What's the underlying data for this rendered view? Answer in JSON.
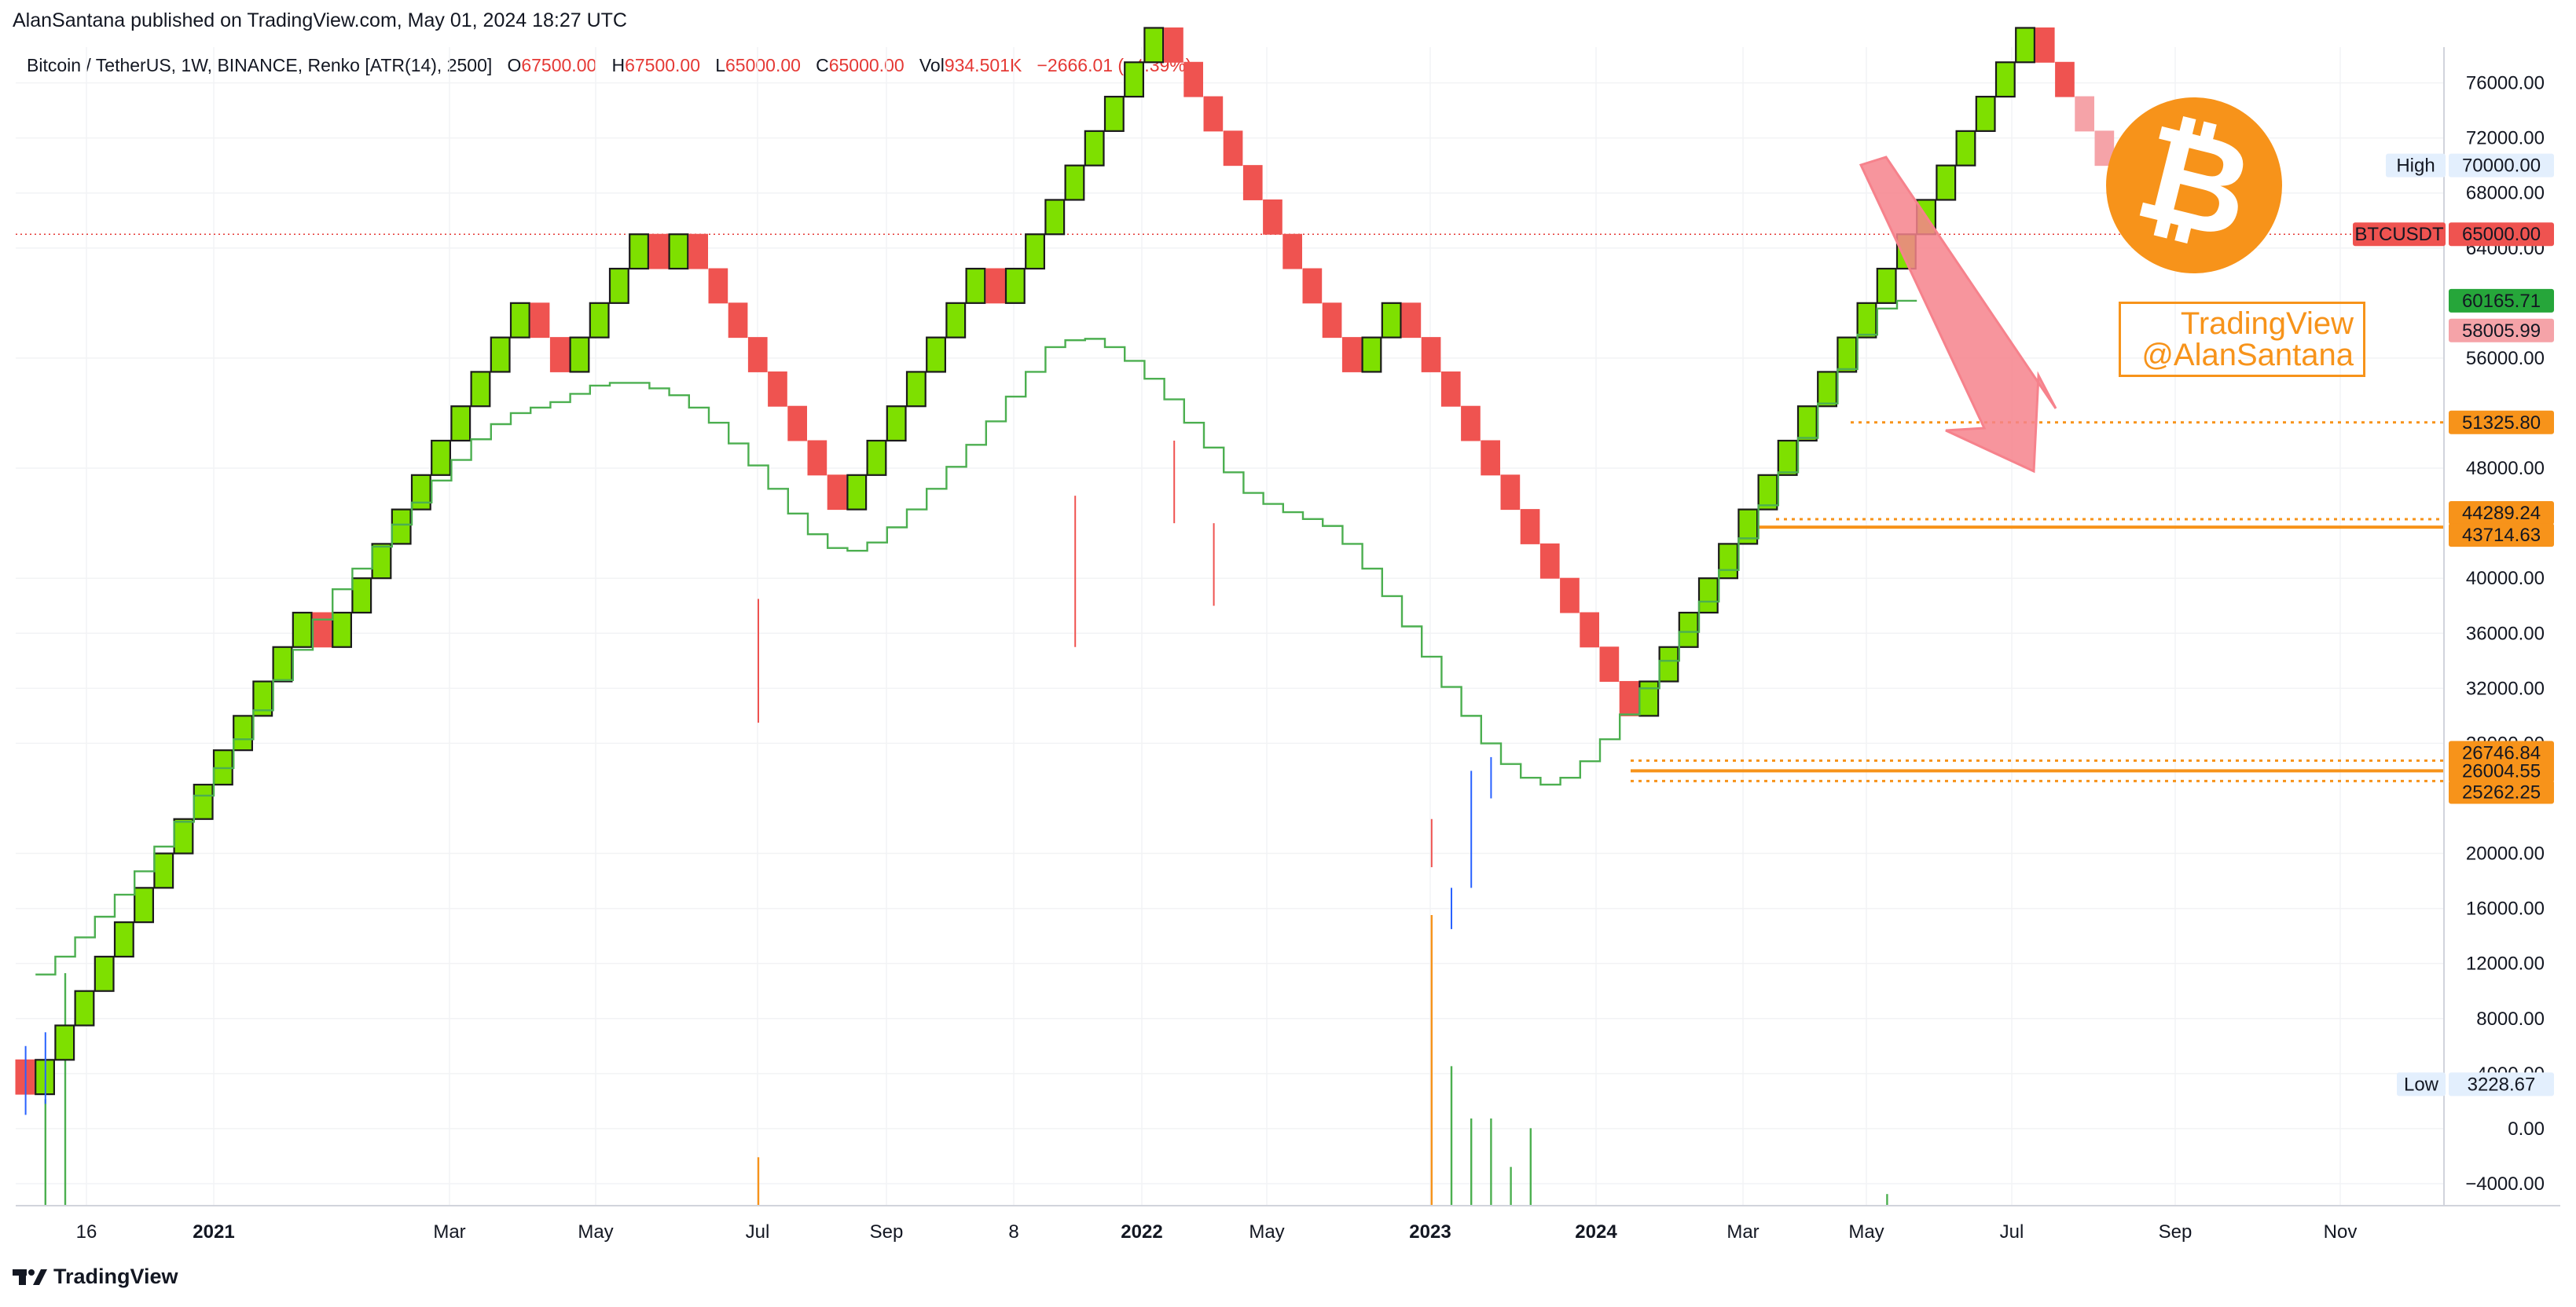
{
  "header": {
    "published": "AlanSantana published on TradingView.com, May 01, 2024 18:27 UTC",
    "symbol": "Bitcoin / TetherUS, 1W, BINANCE, Renko [ATR(14), 2500]",
    "open_label": "O",
    "open": "67500.00",
    "high_label": "H",
    "high": "67500.00",
    "low_label": "L",
    "low": "65000.00",
    "close_label": "C",
    "close": "65000.00",
    "vol_label": "Vol",
    "vol": "934.501K",
    "change": "−2666.01 (−4.39%)"
  },
  "watermark": {
    "line1": "TradingView",
    "line2": "@AlanSantana"
  },
  "footer": {
    "brand": "TradingView"
  },
  "colors": {
    "up": "#7ee000",
    "down": "#ef5350",
    "projected": "#f5a3a8",
    "ma": "#4caf50",
    "level": "#f7931a",
    "price_line": "#e53935",
    "bitcoin": "#f7931a",
    "arrow": "#f6828c"
  },
  "icons": [
    "bitcoin-logo-icon",
    "arrow-down-icon",
    "tradingview-logo-icon"
  ],
  "chart_data": {
    "type": "renko",
    "brick_size": 2500,
    "start_price": 5000,
    "directions": "DUUUUUUUUUUUUUUDUUUUUUUUUUDDUUUUDUDDDDDDDDUUUUUUUDUUUUUUUUDDDDDDDDDDUUDDDDDDDDDDDDUUUUUUUUUUUUUUUUUUUUDD",
    "projected_directions": "DDD",
    "moving_average": [
      11200,
      12500,
      13900,
      15400,
      17000,
      18700,
      20500,
      22300,
      24200,
      26200,
      28300,
      30400,
      32600,
      34800,
      37000,
      39200,
      40700,
      42300,
      43900,
      45500,
      47100,
      48600,
      50100,
      51200,
      52000,
      52400,
      52800,
      53400,
      54000,
      54200,
      54200,
      53800,
      53300,
      52400,
      51300,
      49800,
      48200,
      46500,
      44700,
      43200,
      42200,
      42000,
      42600,
      43700,
      45000,
      46500,
      48100,
      49700,
      51400,
      53200,
      55000,
      56800,
      57300,
      57400,
      56800,
      55800,
      54500,
      53000,
      51300,
      49500,
      47700,
      46200,
      45400,
      44800,
      44300,
      43800,
      42500,
      40700,
      38700,
      36500,
      34300,
      32100,
      30000,
      28000,
      26500,
      25500,
      25000,
      25500,
      26700,
      28300,
      30100,
      32000,
      34000,
      36100,
      38300,
      40600,
      42900,
      45300,
      47700,
      50200,
      52700,
      55200,
      57700,
      59600,
      60165
    ],
    "y_axis": [
      "76000.00",
      "72000.00",
      "68000.00",
      "64000.00",
      "56000.00",
      "48000.00",
      "40000.00",
      "36000.00",
      "32000.00",
      "28000.00",
      "20000.00",
      "16000.00",
      "12000.00",
      "8000.00",
      "4000.00",
      "0.00",
      "−4000.00"
    ],
    "ylim": [
      -5600,
      78600
    ],
    "x_axis": [
      {
        "label": "16",
        "bold": false
      },
      {
        "label": "2021",
        "bold": true
      },
      {
        "label": "Mar",
        "bold": false
      },
      {
        "label": "May",
        "bold": false
      },
      {
        "label": "Jul",
        "bold": false
      },
      {
        "label": "Sep",
        "bold": false
      },
      {
        "label": "8",
        "bold": false
      },
      {
        "label": "2022",
        "bold": true
      },
      {
        "label": "May",
        "bold": false
      },
      {
        "label": "2023",
        "bold": true
      },
      {
        "label": "2024",
        "bold": true
      },
      {
        "label": "Mar",
        "bold": false
      },
      {
        "label": "May",
        "bold": false
      },
      {
        "label": "Jul",
        "bold": false
      },
      {
        "label": "Sep",
        "bold": false
      },
      {
        "label": "Nov",
        "bold": false
      }
    ],
    "price_badges": [
      {
        "text": "70000.00",
        "tag": "High",
        "value": 70000,
        "bg": "#e3effd",
        "fg": "#131722"
      },
      {
        "text": "65000.00",
        "tag": "BTCUSDT",
        "value": 65000,
        "bg": "#ef5350",
        "fg": "#ffffff"
      },
      {
        "text": "60165.71",
        "tag": "",
        "value": 60165.71,
        "bg": "#26a63a",
        "fg": "#ffffff"
      },
      {
        "text": "58005.99",
        "tag": "",
        "value": 58005.99,
        "bg": "#f5a3a8",
        "fg": "#131722"
      },
      {
        "text": "51325.80",
        "tag": "",
        "value": 51325.8,
        "bg": "#f7931a",
        "fg": "#131722"
      },
      {
        "text": "44289.24",
        "tag": "",
        "value": 44289.24,
        "bg": "#f7931a",
        "fg": "#131722"
      },
      {
        "text": "43714.63",
        "tag": "",
        "value": 43714.63,
        "bg": "#f7931a",
        "fg": "#131722"
      },
      {
        "text": "26746.84",
        "tag": "",
        "value": 26746.84,
        "bg": "#f7931a",
        "fg": "#131722"
      },
      {
        "text": "26004.55",
        "tag": "",
        "value": 26004.55,
        "bg": "#f7931a",
        "fg": "#131722"
      },
      {
        "text": "25262.25",
        "tag": "",
        "value": 25262.25,
        "bg": "#f7931a",
        "fg": "#131722"
      },
      {
        "text": "3228.67",
        "tag": "Low",
        "value": 3228.67,
        "bg": "#e3effd",
        "fg": "#131722"
      }
    ],
    "levels": [
      {
        "value": 51325.8,
        "style": "dotted"
      },
      {
        "value": 44289.24,
        "style": "dotted"
      },
      {
        "value": 43714.63,
        "style": "solid"
      },
      {
        "value": 26746.84,
        "style": "dotted"
      },
      {
        "value": 26004.55,
        "style": "solid"
      },
      {
        "value": 25262.25,
        "style": "dotted"
      }
    ],
    "current_price": 65000,
    "volume": [
      {
        "brick": 1,
        "value": 5500,
        "color": "#4caf50"
      },
      {
        "brick": 2,
        "value": 12000,
        "color": "#4caf50"
      },
      {
        "brick": 37,
        "value": 2500,
        "color": "#f7931a"
      },
      {
        "brick": 71,
        "value": 15000,
        "color": "#f7931a"
      },
      {
        "brick": 72,
        "value": 7200,
        "color": "#4caf50"
      },
      {
        "brick": 73,
        "value": 4500,
        "color": "#4caf50"
      },
      {
        "brick": 74,
        "value": 4500,
        "color": "#4caf50"
      },
      {
        "brick": 75,
        "value": 2000,
        "color": "#4caf50"
      },
      {
        "brick": 76,
        "value": 4000,
        "color": "#4caf50"
      },
      {
        "brick": 94,
        "value": 600,
        "color": "#4caf50"
      }
    ]
  }
}
